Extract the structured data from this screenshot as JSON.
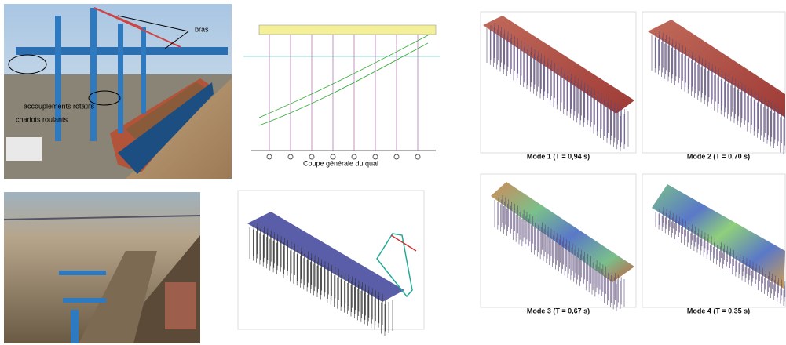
{
  "photo_1": {
    "labels": [
      "bras",
      "accouplements rotatifs",
      "chariots roulants"
    ]
  },
  "drawing": {
    "title": "Coupe générale du quai"
  },
  "modes": [
    {
      "caption": "Mode 1 (T = 0,94 s)"
    },
    {
      "caption": "Mode 2 (T = 0,70 s)"
    },
    {
      "caption": "Mode 3 (T = 0,67 s)"
    },
    {
      "caption": "Mode 4 (T = 0,35 s)"
    }
  ]
}
